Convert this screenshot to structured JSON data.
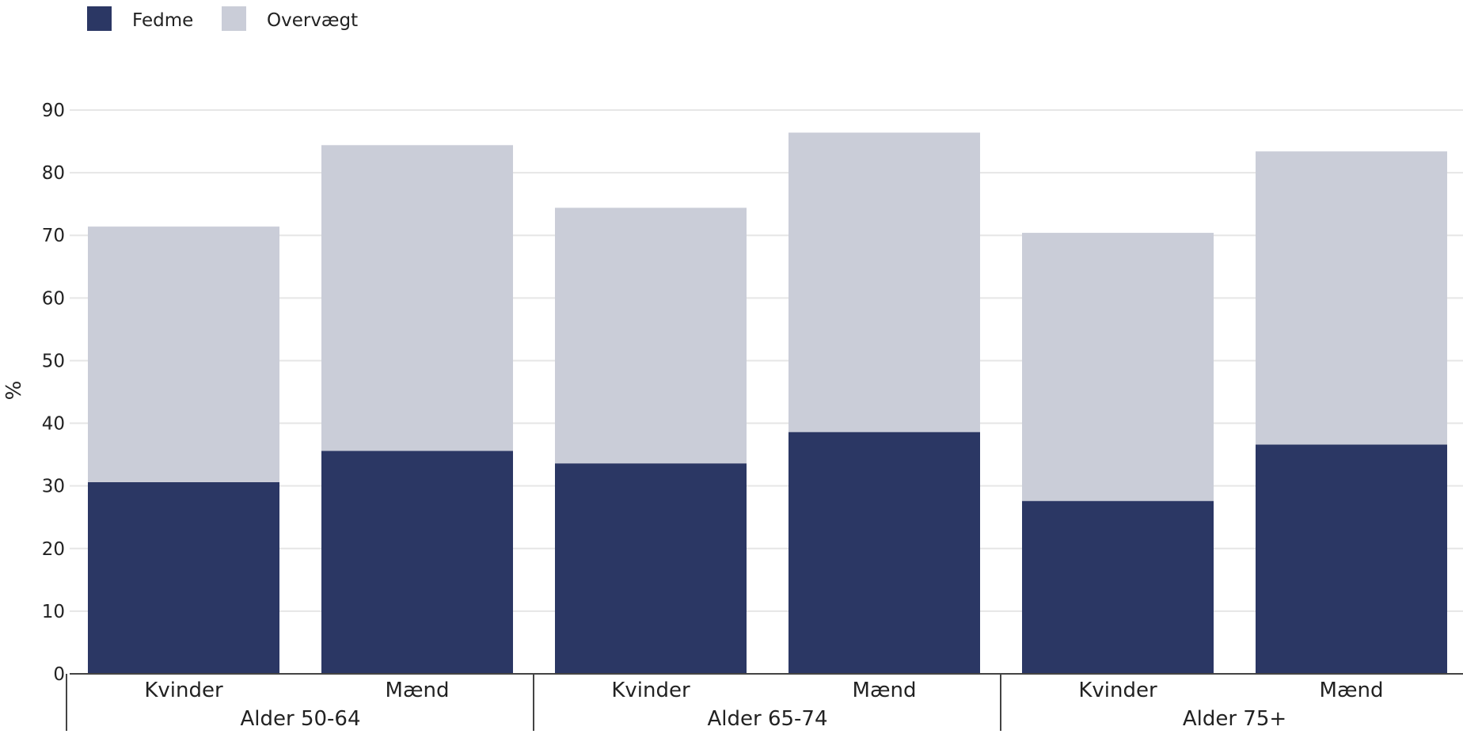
{
  "chart_data": {
    "type": "bar",
    "stacked": true,
    "title": "",
    "xlabel": "",
    "ylabel": "%",
    "ylim": [
      0,
      90
    ],
    "yticks": [
      0,
      10,
      20,
      30,
      40,
      50,
      60,
      70,
      80,
      90
    ],
    "grid": true,
    "legend_position": "top-left",
    "groups": [
      {
        "label": "Alder 50-64",
        "categories": [
          "Kvinder",
          "Mænd"
        ]
      },
      {
        "label": "Alder 65-74",
        "categories": [
          "Kvinder",
          "Mænd"
        ]
      },
      {
        "label": "Alder 75+",
        "categories": [
          "Kvinder",
          "Mænd"
        ]
      }
    ],
    "categories": [
      "Kvinder",
      "Mænd",
      "Kvinder",
      "Mænd",
      "Kvinder",
      "Mænd"
    ],
    "series": [
      {
        "name": "Fedme",
        "color": "#2b3764",
        "values": [
          30.6,
          35.6,
          33.6,
          38.6,
          27.6,
          36.6
        ]
      },
      {
        "name": "Overvægt",
        "color": "#cacdd8",
        "values": [
          40.8,
          48.8,
          40.8,
          47.8,
          42.8,
          46.8
        ]
      }
    ],
    "colors": {
      "grid": "#e6e6e6",
      "axis": "#444444"
    }
  }
}
